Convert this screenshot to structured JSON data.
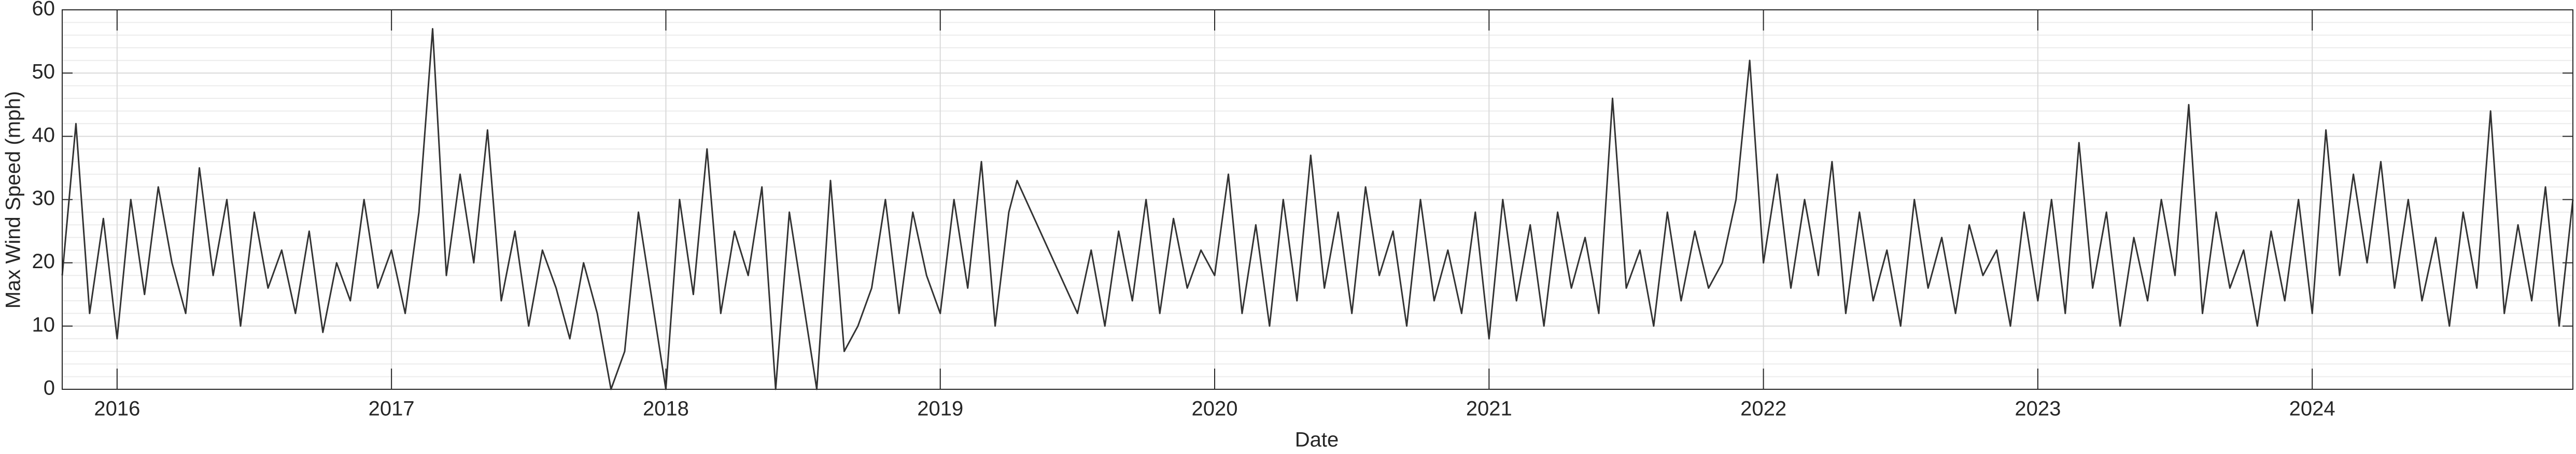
{
  "chart_data": {
    "type": "line",
    "xlabel": "Date",
    "ylabel": "Max Wind Speed (mph)",
    "xlim": [
      2015.8,
      2024.95
    ],
    "ylim": [
      0,
      60
    ],
    "xticks": [
      2016,
      2017,
      2018,
      2019,
      2020,
      2021,
      2022,
      2023,
      2024
    ],
    "yticks": [
      0,
      10,
      20,
      30,
      40,
      50,
      60
    ],
    "grid": true,
    "minor_grid": true,
    "x": [
      2015.8,
      2015.85,
      2015.9,
      2015.95,
      2016,
      2016.05,
      2016.1,
      2016.15,
      2016.2,
      2016.25,
      2016.3,
      2016.35,
      2016.4,
      2016.45,
      2016.5,
      2016.55,
      2016.6,
      2016.65,
      2016.7,
      2016.75,
      2016.8,
      2016.85,
      2016.9,
      2016.95,
      2017,
      2017.05,
      2017.1,
      2017.15,
      2017.2,
      2017.25,
      2017.3,
      2017.35,
      2017.4,
      2017.45,
      2017.5,
      2017.55,
      2017.6,
      2017.65,
      2017.7,
      2017.75,
      2017.8,
      2017.85,
      2017.9,
      2017.95,
      2018,
      2018.05,
      2018.1,
      2018.15,
      2018.2,
      2018.25,
      2018.3,
      2018.35,
      2018.4,
      2018.45,
      2018.5,
      2018.55,
      2018.6,
      2018.65,
      2018.7,
      2018.75,
      2018.8,
      2018.85,
      2018.9,
      2018.95,
      2019,
      2019.05,
      2019.1,
      2019.15,
      2019.2,
      2019.25,
      2019.28,
      2019.5,
      2019.55,
      2019.6,
      2019.65,
      2019.7,
      2019.75,
      2019.8,
      2019.85,
      2019.9,
      2019.95,
      2020,
      2020.05,
      2020.1,
      2020.15,
      2020.2,
      2020.25,
      2020.3,
      2020.35,
      2020.4,
      2020.45,
      2020.5,
      2020.55,
      2020.6,
      2020.65,
      2020.7,
      2020.75,
      2020.8,
      2020.85,
      2020.9,
      2020.95,
      2021,
      2021.05,
      2021.1,
      2021.15,
      2021.2,
      2021.25,
      2021.3,
      2021.35,
      2021.4,
      2021.45,
      2021.5,
      2021.55,
      2021.6,
      2021.65,
      2021.7,
      2021.75,
      2021.8,
      2021.85,
      2021.9,
      2021.95,
      2022,
      2022.05,
      2022.1,
      2022.15,
      2022.2,
      2022.25,
      2022.3,
      2022.35,
      2022.4,
      2022.45,
      2022.5,
      2022.55,
      2022.6,
      2022.65,
      2022.7,
      2022.75,
      2022.8,
      2022.85,
      2022.9,
      2022.95,
      2023,
      2023.05,
      2023.1,
      2023.15,
      2023.2,
      2023.25,
      2023.3,
      2023.35,
      2023.4,
      2023.45,
      2023.5,
      2023.55,
      2023.6,
      2023.65,
      2023.7,
      2023.75,
      2023.8,
      2023.85,
      2023.9,
      2023.95,
      2024,
      2024.05,
      2024.1,
      2024.15,
      2024.2,
      2024.25,
      2024.3,
      2024.35,
      2024.4,
      2024.45,
      2024.5,
      2024.55,
      2024.6,
      2024.65,
      2024.7,
      2024.75,
      2024.8,
      2024.85,
      2024.9,
      2024.95
    ],
    "series": [
      {
        "color": "#333333",
        "values": [
          18,
          42,
          12,
          27,
          8,
          30,
          15,
          32,
          20,
          12,
          35,
          18,
          30,
          10,
          28,
          16,
          22,
          12,
          25,
          9,
          20,
          14,
          30,
          16,
          22,
          12,
          28,
          57,
          18,
          34,
          20,
          41,
          14,
          25,
          10,
          22,
          16,
          8,
          20,
          12,
          0,
          6,
          28,
          14,
          0,
          30,
          15,
          38,
          12,
          25,
          18,
          32,
          0,
          28,
          14,
          0,
          33,
          6,
          10,
          16,
          30,
          12,
          28,
          18,
          12,
          30,
          16,
          36,
          10,
          28,
          33,
          12,
          22,
          10,
          25,
          14,
          30,
          12,
          27,
          16,
          22,
          18,
          34,
          12,
          26,
          10,
          30,
          14,
          37,
          16,
          28,
          12,
          32,
          18,
          25,
          10,
          30,
          14,
          22,
          12,
          28,
          8,
          30,
          14,
          26,
          10,
          28,
          16,
          24,
          12,
          46,
          16,
          22,
          10,
          28,
          14,
          25,
          16,
          20,
          30,
          52,
          20,
          34,
          16,
          30,
          18,
          36,
          12,
          28,
          14,
          22,
          10,
          30,
          16,
          24,
          12,
          26,
          18,
          22,
          10,
          28,
          14,
          30,
          12,
          39,
          16,
          28,
          10,
          24,
          14,
          30,
          18,
          45,
          12,
          28,
          16,
          22,
          10,
          25,
          14,
          30,
          12,
          41,
          18,
          34,
          20,
          36,
          16,
          30,
          14,
          24,
          10,
          28,
          16,
          44,
          12,
          26,
          14,
          32,
          10,
          30
        ]
      }
    ]
  }
}
